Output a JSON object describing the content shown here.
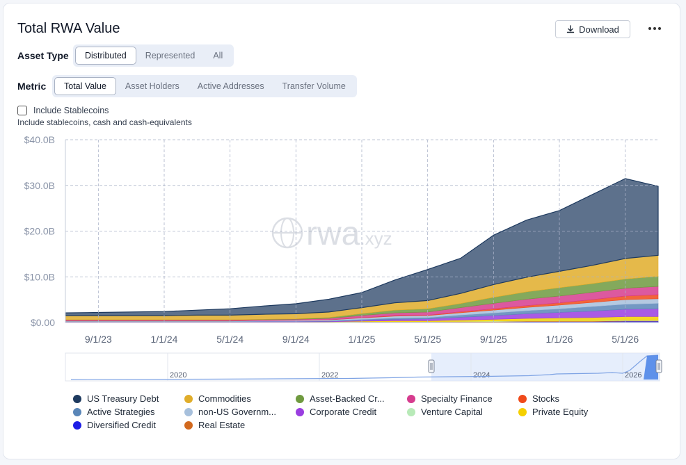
{
  "title": "Total RWA Value",
  "download_label": "Download",
  "asset_type": {
    "label": "Asset Type",
    "options": [
      "Distributed",
      "Represented",
      "All"
    ],
    "selected": "Distributed"
  },
  "metric": {
    "label": "Metric",
    "options": [
      "Total Value",
      "Asset Holders",
      "Active Addresses",
      "Transfer Volume"
    ],
    "selected": "Total Value"
  },
  "stablecoins": {
    "label": "Include Stablecoins",
    "description": "Include stablecoins, cash and cash-equivalents",
    "checked": false
  },
  "watermark": "rwa.xyz",
  "navigator": {
    "year_labels": [
      "2020",
      "2022",
      "2024",
      "2026"
    ]
  },
  "colors": {
    "accent": "#1e3a5f",
    "gridline": "#aab2c8"
  },
  "chart_data": {
    "type": "area",
    "stacked": true,
    "x": [
      "7/1/23",
      "9/1/23",
      "11/1/23",
      "1/1/24",
      "3/1/24",
      "5/1/24",
      "7/1/24",
      "9/1/24",
      "11/1/24",
      "1/1/25",
      "3/1/25",
      "5/1/25",
      "7/1/25",
      "9/1/25",
      "11/1/25",
      "1/1/26",
      "3/1/26",
      "5/1/26",
      "7/1/26"
    ],
    "x_tick_labels": [
      "9/1/23",
      "1/1/24",
      "5/1/24",
      "9/1/24",
      "1/1/25",
      "5/1/25",
      "9/1/25",
      "1/1/26",
      "5/1/26"
    ],
    "ylim": [
      0,
      40
    ],
    "y_tick_labels": [
      "$0.00",
      "$10.0B",
      "$20.0B",
      "$30.0B",
      "$40.0B"
    ],
    "grid": true,
    "legend_position": "bottom",
    "series": [
      {
        "name": "Diversified Credit",
        "color": "#1d1de6",
        "values": [
          0.05,
          0.05,
          0.05,
          0.05,
          0.05,
          0.05,
          0.05,
          0.05,
          0.05,
          0.1,
          0.1,
          0.1,
          0.1,
          0.1,
          0.2,
          0.2,
          0.2,
          0.3,
          0.3
        ]
      },
      {
        "name": "Real Estate",
        "color": "#d2691e",
        "values": [
          0.05,
          0.05,
          0.05,
          0.05,
          0.05,
          0.05,
          0.05,
          0.05,
          0.05,
          0.05,
          0.05,
          0.05,
          0.1,
          0.1,
          0.1,
          0.1,
          0.1,
          0.1,
          0.1
        ]
      },
      {
        "name": "Venture Capital",
        "color": "#b8eab8",
        "values": [
          0.02,
          0.02,
          0.02,
          0.02,
          0.02,
          0.02,
          0.02,
          0.02,
          0.02,
          0.05,
          0.05,
          0.05,
          0.05,
          0.1,
          0.1,
          0.1,
          0.1,
          0.1,
          0.1
        ]
      },
      {
        "name": "Private Equity",
        "color": "#f5d000",
        "values": [
          0.02,
          0.02,
          0.02,
          0.02,
          0.02,
          0.02,
          0.02,
          0.02,
          0.05,
          0.1,
          0.2,
          0.2,
          0.3,
          0.4,
          0.5,
          0.6,
          0.7,
          0.8,
          0.8
        ]
      },
      {
        "name": "Corporate Credit",
        "color": "#9a3ee0",
        "values": [
          0.05,
          0.05,
          0.05,
          0.05,
          0.05,
          0.05,
          0.1,
          0.1,
          0.1,
          0.2,
          0.3,
          0.4,
          0.6,
          0.8,
          1.0,
          1.2,
          1.4,
          1.6,
          1.7
        ]
      },
      {
        "name": "Active Strategies",
        "color": "#5a86b8",
        "values": [
          0.05,
          0.05,
          0.05,
          0.05,
          0.05,
          0.05,
          0.05,
          0.05,
          0.1,
          0.2,
          0.3,
          0.3,
          0.5,
          0.6,
          0.7,
          0.8,
          1.0,
          1.1,
          1.2
        ]
      },
      {
        "name": "non-US Government Debt",
        "color": "#a7c0dc",
        "values": [
          0.1,
          0.1,
          0.1,
          0.1,
          0.1,
          0.1,
          0.15,
          0.2,
          0.2,
          0.3,
          0.4,
          0.4,
          0.5,
          0.6,
          0.7,
          0.8,
          0.9,
          1.0,
          1.0
        ]
      },
      {
        "name": "Stocks",
        "color": "#f04a1a",
        "values": [
          0.02,
          0.02,
          0.02,
          0.02,
          0.02,
          0.02,
          0.02,
          0.02,
          0.02,
          0.05,
          0.1,
          0.1,
          0.2,
          0.3,
          0.4,
          0.5,
          0.6,
          0.8,
          0.9
        ]
      },
      {
        "name": "Specialty Finance",
        "color": "#d63c8e",
        "values": [
          0.2,
          0.2,
          0.2,
          0.2,
          0.2,
          0.2,
          0.2,
          0.2,
          0.3,
          0.5,
          0.6,
          0.7,
          0.9,
          1.2,
          1.4,
          1.5,
          1.6,
          1.7,
          1.8
        ]
      },
      {
        "name": "Asset-Backed Credit",
        "color": "#6f9a3f",
        "values": [
          0.05,
          0.05,
          0.05,
          0.05,
          0.05,
          0.05,
          0.05,
          0.1,
          0.2,
          0.4,
          0.6,
          0.7,
          0.9,
          1.3,
          1.6,
          1.8,
          1.9,
          2.0,
          2.2
        ]
      },
      {
        "name": "Commodities",
        "color": "#e0ad2a",
        "values": [
          0.9,
          0.9,
          0.9,
          0.9,
          1.0,
          1.0,
          1.1,
          1.1,
          1.2,
          1.3,
          1.6,
          1.8,
          2.2,
          2.8,
          3.2,
          3.6,
          4.0,
          4.5,
          4.6
        ]
      },
      {
        "name": "US Treasury Debt",
        "color": "#1e3a5f",
        "values": [
          0.6,
          0.7,
          0.8,
          0.9,
          1.1,
          1.4,
          1.8,
          2.2,
          2.8,
          3.3,
          5.0,
          6.8,
          7.7,
          10.8,
          12.5,
          13.3,
          15.5,
          17.5,
          15.1
        ]
      }
    ]
  }
}
